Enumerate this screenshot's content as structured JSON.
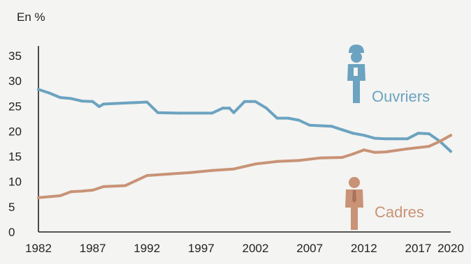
{
  "chart_data": {
    "type": "line",
    "ylabel": "En %",
    "xlim": [
      1982,
      2020
    ],
    "ylim": [
      0,
      35
    ],
    "x_ticks": [
      1982,
      1987,
      1992,
      1997,
      2002,
      2007,
      2012,
      2017,
      2020
    ],
    "y_ticks": [
      0,
      5,
      10,
      15,
      20,
      25,
      30,
      35
    ],
    "grid": false,
    "series": [
      {
        "name": "Ouvriers",
        "color": "#6ba3c0",
        "icon": "worker-icon",
        "x": [
          1982,
          1983,
          1984,
          1985,
          1986,
          1987,
          1987.6,
          1988,
          1990,
          1991,
          1992,
          1993,
          1995,
          1997,
          1998,
          1999,
          1999.6,
          2000,
          2001,
          2002,
          2003,
          2004,
          2005,
          2006,
          2007,
          2008,
          2009,
          2010,
          2011,
          2012,
          2013,
          2014,
          2015,
          2016,
          2017,
          2018,
          2019,
          2020
        ],
        "values": [
          28.3,
          27.6,
          26.7,
          26.5,
          26.0,
          25.9,
          24.9,
          25.4,
          25.6,
          25.7,
          25.8,
          23.7,
          23.6,
          23.6,
          23.6,
          24.6,
          24.6,
          23.7,
          25.9,
          25.9,
          24.6,
          22.6,
          22.6,
          22.2,
          21.2,
          21.1,
          21.0,
          20.3,
          19.6,
          19.2,
          18.6,
          18.5,
          18.5,
          18.5,
          19.6,
          19.5,
          18.0,
          16.0
        ]
      },
      {
        "name": "Cadres",
        "color": "#c89376",
        "icon": "executive-icon",
        "x": [
          1982,
          1983,
          1984,
          1985,
          1986,
          1987,
          1988,
          1990,
          1991,
          1992,
          1994,
          1996,
          1998,
          2000,
          2002,
          2004,
          2006,
          2008,
          2010,
          2011,
          2012,
          2013,
          2014,
          2016,
          2018,
          2019,
          2020
        ],
        "values": [
          6.8,
          7.0,
          7.2,
          8.0,
          8.1,
          8.3,
          9.0,
          9.2,
          10.2,
          11.2,
          11.5,
          11.8,
          12.2,
          12.5,
          13.5,
          14.0,
          14.2,
          14.7,
          14.8,
          15.5,
          16.3,
          15.8,
          15.9,
          16.5,
          17.0,
          18.0,
          19.2
        ]
      }
    ]
  }
}
